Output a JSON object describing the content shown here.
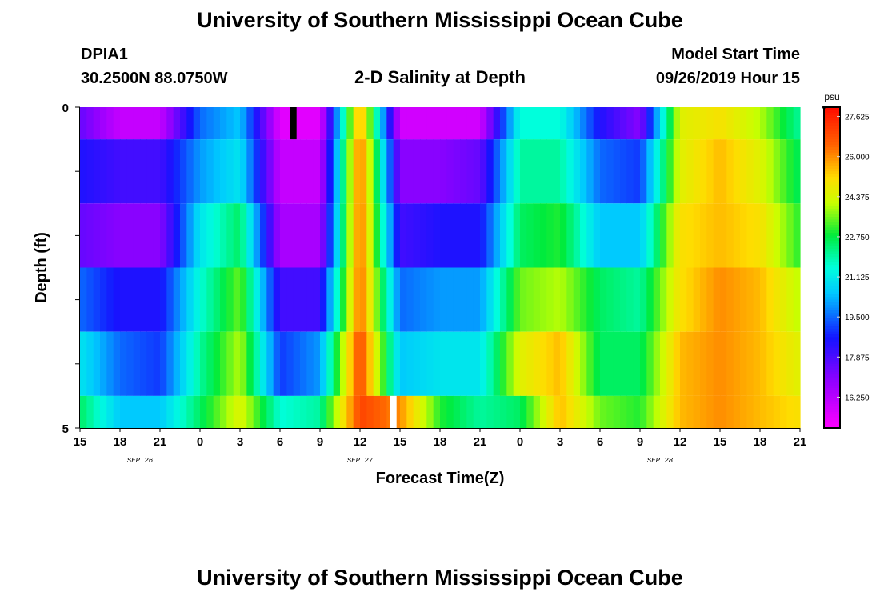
{
  "page": {
    "title_top": "University of Southern Mississippi Ocean Cube",
    "title_bottom": "University of Southern Mississippi Ocean Cube",
    "station_id": "DPIA1",
    "station_coords": "30.2500N 88.0750W",
    "plot_title": "2-D Salinity at Depth",
    "model_start_label": "Model Start Time",
    "model_start_value": "09/26/2019 Hour 15"
  },
  "chart_data": {
    "type": "heatmap",
    "title": "2-D Salinity at Depth",
    "xlabel": "Forecast Time(Z)",
    "ylabel": "Depth (ft)",
    "y_tick_labels": [
      "0",
      "5"
    ],
    "ylim": [
      0,
      5
    ],
    "x_tick_labels": [
      "15",
      "18",
      "21",
      "0",
      "3",
      "6",
      "9",
      "12",
      "15",
      "18",
      "21",
      "0",
      "3",
      "6",
      "9",
      "12",
      "15",
      "18",
      "21"
    ],
    "date_labels": [
      {
        "label": "SEP 26",
        "at_tick": 1.5
      },
      {
        "label": "SEP 27",
        "at_tick": 7
      },
      {
        "label": "SEP 28",
        "at_tick": 14.5
      }
    ],
    "colorbar": {
      "unit": "psu",
      "min": 15.0,
      "max": 28.0,
      "tick_labels": [
        "27.625",
        "26.000",
        "24.375",
        "22.750",
        "21.125",
        "19.500",
        "17.875",
        "16.250"
      ],
      "tick_values": [
        27.625,
        26.0,
        24.375,
        22.75,
        21.125,
        19.5,
        17.875,
        16.25
      ]
    },
    "hours": [
      0,
      3,
      6,
      9,
      12,
      15,
      18,
      21,
      24,
      27,
      30,
      33,
      36,
      39,
      42,
      45,
      48,
      51,
      54
    ],
    "layers": [
      {
        "depth": "0-0.5",
        "values": [
          17.5,
          16.0,
          16.0,
          19.5,
          20.5,
          15.5,
          15.5,
          26.0,
          15.8,
          15.8,
          15.8,
          21.5,
          21.5,
          18.5,
          17.0,
          24.5,
          25.0,
          24.0,
          22.0
        ]
      },
      {
        "depth": "0.5-1.5",
        "values": [
          18.5,
          18.0,
          18.0,
          20.0,
          21.0,
          16.0,
          16.0,
          26.5,
          17.0,
          17.0,
          17.5,
          22.0,
          22.0,
          19.5,
          19.0,
          24.5,
          25.5,
          24.5,
          22.5
        ]
      },
      {
        "depth": "1.5-2.5",
        "values": [
          17.5,
          17.0,
          17.0,
          21.0,
          22.5,
          16.5,
          16.5,
          26.5,
          18.0,
          18.5,
          18.5,
          22.5,
          23.0,
          20.5,
          20.5,
          25.0,
          25.5,
          25.0,
          23.0
        ]
      },
      {
        "depth": "2.5-3.5",
        "values": [
          19.5,
          18.5,
          18.5,
          21.5,
          23.5,
          18.0,
          18.0,
          26.5,
          19.5,
          20.0,
          20.0,
          23.5,
          24.0,
          22.5,
          22.0,
          25.0,
          26.0,
          25.5,
          24.0
        ]
      },
      {
        "depth": "3.5-4.5",
        "values": [
          21.0,
          19.5,
          19.0,
          22.0,
          24.0,
          19.0,
          20.0,
          27.0,
          20.5,
          21.0,
          21.0,
          24.5,
          25.5,
          22.5,
          22.5,
          25.5,
          26.0,
          25.5,
          24.5
        ]
      },
      {
        "depth": "4.5-5.0",
        "values": [
          22.5,
          20.5,
          20.5,
          22.5,
          24.5,
          21.5,
          22.0,
          27.0,
          26.0,
          23.0,
          22.0,
          22.5,
          25.5,
          23.5,
          23.0,
          25.5,
          26.0,
          25.5,
          25.0
        ]
      }
    ],
    "markers": [
      {
        "label": "black-marker",
        "hour": 16.0,
        "layer": 0,
        "color": "#000000"
      },
      {
        "label": "white-marker",
        "hour": 23.5,
        "layer": 5,
        "color": "#ffffff"
      }
    ]
  }
}
